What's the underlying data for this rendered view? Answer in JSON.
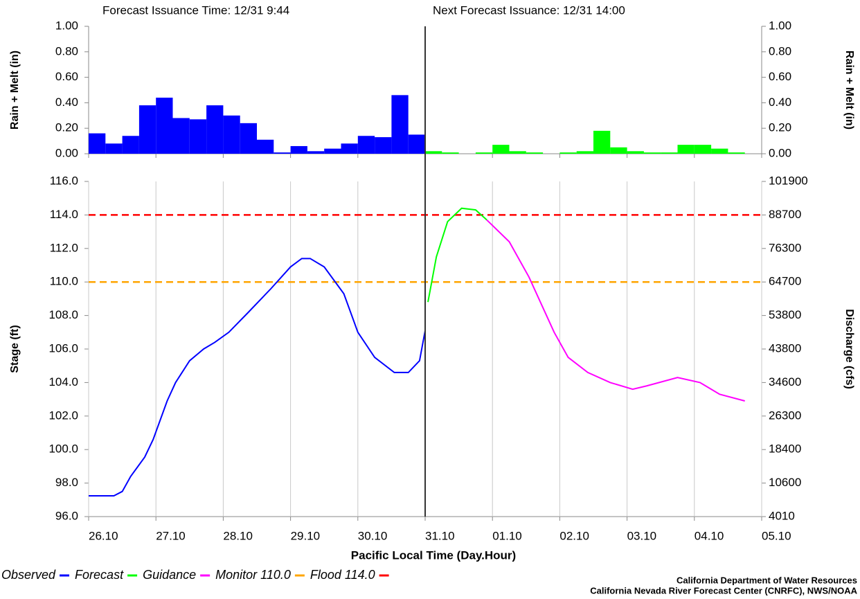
{
  "header": {
    "issuance": "Forecast Issuance Time: 12/31 9:44",
    "next": "Next Forecast Issuance: 12/31 14:00"
  },
  "credits": [
    "California Department of Water Resources",
    "California Nevada River Forecast Center (CNRFC), NWS/NOAA"
  ],
  "chart_data": [
    {
      "type": "histogram",
      "ylabel": "Rain + Melt (in)",
      "y2label": "Rain + Melt (in)",
      "xlim": [
        0,
        240
      ],
      "ylim": [
        0,
        1
      ],
      "yticks": [
        {
          "value": 0,
          "label": "0.00"
        },
        {
          "value": 0.2,
          "label": "0.20"
        },
        {
          "value": 0.4,
          "label": "0.40"
        },
        {
          "value": 0.6,
          "label": "0.60"
        },
        {
          "value": 0.8,
          "label": "0.80"
        },
        {
          "value": 1,
          "label": "1.00"
        }
      ],
      "series": [
        {
          "color": "#0000ff",
          "bins": [
            0,
            6,
            12,
            18,
            24,
            30,
            36,
            42,
            48,
            54,
            60,
            66,
            72,
            78,
            84,
            90,
            96,
            102,
            108,
            114,
            120
          ],
          "values": [
            0.16,
            0.08,
            0.14,
            0.38,
            0.44,
            0.28,
            0.27,
            0.38,
            0.3,
            0.24,
            0.11,
            0.01,
            0.06,
            0.02,
            0.04,
            0.08,
            0.14,
            0.13,
            0.46,
            0.15
          ]
        },
        {
          "color": "#00ff00",
          "bins": [
            120,
            126,
            132,
            138,
            144,
            150,
            156,
            162,
            168,
            174,
            180,
            186,
            192,
            198,
            204,
            210,
            216,
            222,
            228,
            234
          ],
          "values": [
            0.02,
            0.01,
            0,
            0.01,
            0.07,
            0.02,
            0.01,
            0,
            0.01,
            0.02,
            0.18,
            0.05,
            0.02,
            0.01,
            0.01,
            0.07,
            0.07,
            0.04,
            0.01
          ]
        }
      ]
    },
    {
      "type": "line",
      "xlabel": "Pacific Local Time (Day.Hour)",
      "ylabel": "Stage (ft)",
      "y2label": "Discharge (cfs)",
      "xlim": [
        0,
        240
      ],
      "ylim": [
        96,
        116
      ],
      "now": 120,
      "grid": true,
      "xticks": [
        {
          "value": 0,
          "label": "26.10"
        },
        {
          "value": 24,
          "label": "27.10"
        },
        {
          "value": 48,
          "label": "28.10"
        },
        {
          "value": 72,
          "label": "29.10"
        },
        {
          "value": 96,
          "label": "30.10"
        },
        {
          "value": 120,
          "label": "31.10"
        },
        {
          "value": 144,
          "label": "01.10"
        },
        {
          "value": 168,
          "label": "02.10"
        },
        {
          "value": 192,
          "label": "03.10"
        },
        {
          "value": 216,
          "label": "04.10"
        },
        {
          "value": 240,
          "label": "05.10"
        }
      ],
      "yticks": [
        {
          "value": 96,
          "label": "96.0"
        },
        {
          "value": 98,
          "label": "98.0"
        },
        {
          "value": 100,
          "label": "100.0"
        },
        {
          "value": 102,
          "label": "102.0"
        },
        {
          "value": 104,
          "label": "104.0"
        },
        {
          "value": 106,
          "label": "106.0"
        },
        {
          "value": 108,
          "label": "108.0"
        },
        {
          "value": 110,
          "label": "110.0"
        },
        {
          "value": 112,
          "label": "112.0"
        },
        {
          "value": 114,
          "label": "114.0"
        },
        {
          "value": 116,
          "label": "116.0"
        }
      ],
      "y2ticks": [
        4010,
        10600,
        18400,
        26300,
        34600,
        43800,
        53800,
        64700,
        76300,
        88700,
        101900
      ],
      "series": [
        {
          "name": "Observed",
          "color": "#0000ff",
          "x": [
            0,
            9,
            12,
            15,
            20,
            23,
            28,
            31,
            36,
            41,
            45,
            50,
            57,
            65,
            72,
            76,
            79,
            84,
            91,
            96,
            102,
            109,
            114,
            118,
            120
          ],
          "values": [
            97.24,
            97.24,
            97.5,
            98.4,
            99.55,
            100.6,
            102.9,
            104.0,
            105.3,
            106.0,
            106.4,
            107.0,
            108.2,
            109.6,
            110.9,
            111.4,
            111.4,
            110.9,
            109.3,
            107.0,
            105.5,
            104.6,
            104.6,
            105.3,
            107.1
          ]
        },
        {
          "name": "Forecast",
          "color": "#00ff00",
          "x": [
            121,
            124,
            128,
            133,
            138,
            142
          ],
          "values": [
            108.8,
            111.5,
            113.6,
            114.4,
            114.3,
            113.7
          ]
        },
        {
          "name": "Guidance",
          "color": "#ff00ff",
          "x": [
            142,
            150,
            157,
            166,
            171,
            178,
            186,
            194,
            199,
            210,
            218,
            225,
            234
          ],
          "values": [
            113.7,
            112.4,
            110.3,
            107.0,
            105.5,
            104.6,
            104.0,
            103.6,
            103.8,
            104.3,
            104.0,
            103.3,
            102.9
          ]
        }
      ],
      "thresholds": [
        {
          "name": "Monitor 110.0",
          "value": 110,
          "color": "#ffa500"
        },
        {
          "name": "Flood 114.0",
          "value": 114,
          "color": "#ff0000"
        }
      ]
    }
  ]
}
